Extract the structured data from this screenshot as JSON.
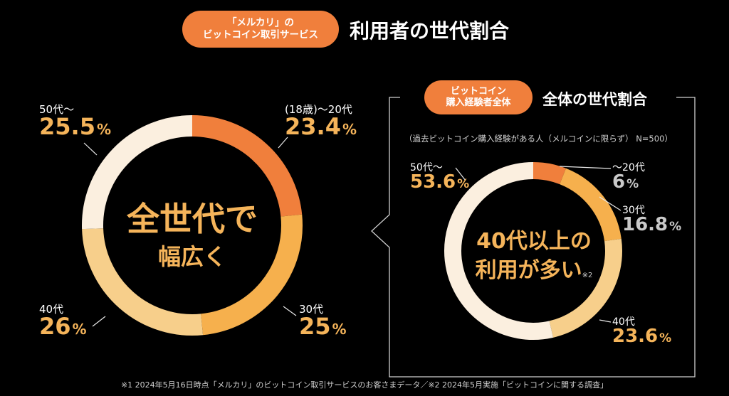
{
  "header": {
    "badge_line1": "「メルカリ」の",
    "badge_line2": "ビットコイン取引サービス",
    "title": "利用者の世代割合"
  },
  "left": {
    "center_line1": "全世代で",
    "center_line2": "幅広く"
  },
  "right": {
    "badge_line1": "ビットコイン",
    "badge_line2": "購入経験者全体",
    "title": "全体の世代割合",
    "note": "（過去ビットコイン購入経験がある人（メルコインに限らず） N=500）",
    "center_line1": "40代以上の",
    "center_line2": "利用が多い",
    "center_note": "※2"
  },
  "footer": "※1 2024年5月16日時点「メルカリ」のビットコイン取引サービスのお客さまデータ／※2 2024年5月実施「ビットコインに関する調査」",
  "colors": {
    "accent": "#f07f3c",
    "amber": "#f5b45a",
    "text_orange": "#f5b45a"
  },
  "chart_data": [
    {
      "type": "pie",
      "variant": "donut",
      "categories": [
        "(18歳)〜20代",
        "30代",
        "40代",
        "50代〜"
      ],
      "values": [
        23.4,
        25,
        26,
        25.5
      ],
      "labels": [
        "23.4",
        "25",
        "26",
        "25.5"
      ],
      "unit": "%",
      "colors": [
        "#f07f3c",
        "#f6b04d",
        "#f7cf8b",
        "#fbefdf"
      ]
    },
    {
      "type": "pie",
      "variant": "donut",
      "categories": [
        "〜20代",
        "30代",
        "40代",
        "50代〜"
      ],
      "values": [
        6,
        16.8,
        23.6,
        53.6
      ],
      "labels": [
        "6",
        "16.8",
        "23.6",
        "53.6"
      ],
      "unit": "%",
      "colors": [
        "#f07f3c",
        "#f6b04d",
        "#f7cf8b",
        "#fbefdf"
      ]
    }
  ]
}
